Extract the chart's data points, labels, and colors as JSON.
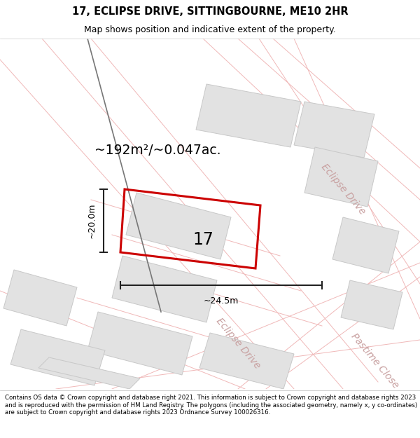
{
  "title": "17, ECLIPSE DRIVE, SITTINGBOURNE, ME10 2HR",
  "subtitle": "Map shows position and indicative extent of the property.",
  "footer": "Contains OS data © Crown copyright and database right 2021. This information is subject to Crown copyright and database rights 2023 and is reproduced with the permission of HM Land Registry. The polygons (including the associated geometry, namely x, y co-ordinates) are subject to Crown copyright and database rights 2023 Ordnance Survey 100026316.",
  "area_text": "~192m²/~0.047ac.",
  "width_text": "~24.5m",
  "height_text": "~20.0m",
  "label_17": "17",
  "red_plot": "#cc0000",
  "map_bg": "#ffffff",
  "block_color": "#e2e2e2",
  "block_edge": "#c8c8c8",
  "road_line": "#f0b8b8",
  "street_label_color": "#c8a0a0",
  "dim_color": "#222222",
  "diag_line_color": "#888888",
  "title_fontsize": 10.5,
  "subtitle_fontsize": 9,
  "footer_fontsize": 6.2
}
